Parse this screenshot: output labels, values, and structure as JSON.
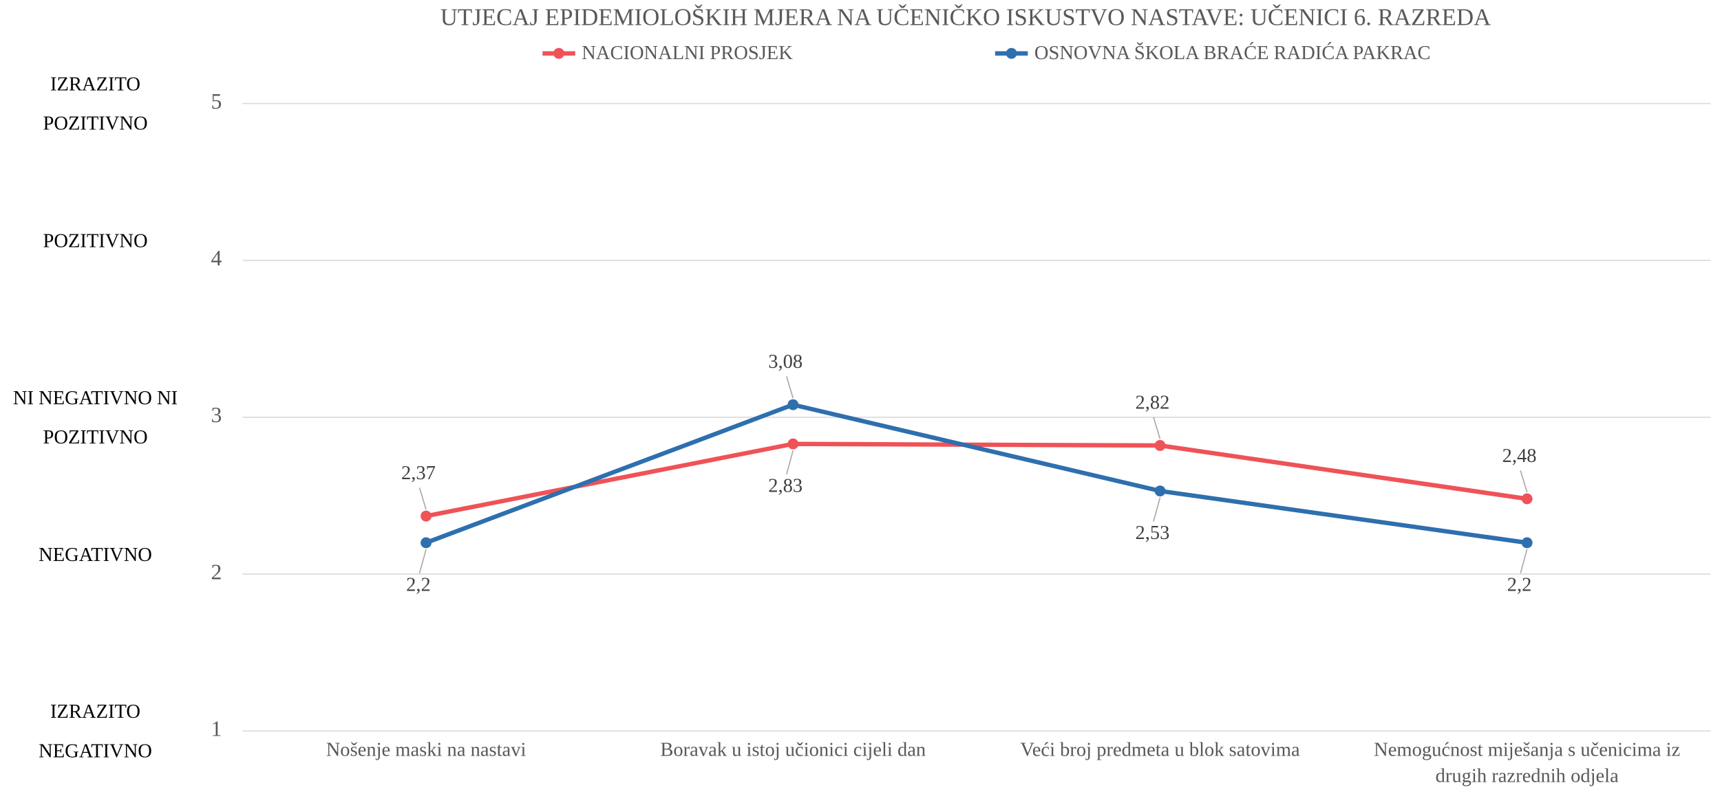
{
  "chart_data": {
    "type": "line",
    "title": "UTJECAJ EPIDEMIOLOŠKIH MJERA NA UČENIČKO ISKUSTVO NASTAVE: UČENICI 6. RAZREDA",
    "categories": [
      "Nošenje maski na nastavi",
      "Boravak u istoj učionici cijeli dan",
      "Veći broj predmeta u blok satovima",
      "Nemogućnost miješanja s učenicima iz drugih razrednih odjela"
    ],
    "series": [
      {
        "name": "NACIONALNI PROSJEK",
        "color": "#ef5257",
        "values": [
          2.37,
          2.83,
          2.82,
          2.48
        ],
        "value_labels": [
          "2,37",
          "2,83",
          "2,82",
          "2,48"
        ]
      },
      {
        "name": "OSNOVNA ŠKOLA BRAĆE RADIĆA PAKRAC",
        "color": "#2e6fae",
        "values": [
          2.2,
          3.08,
          2.53,
          2.2
        ],
        "value_labels": [
          "2,2",
          "3,08",
          "2,53",
          "2,2"
        ]
      }
    ],
    "ylim": [
      1,
      5
    ],
    "yticks": [
      1,
      2,
      3,
      4,
      5
    ],
    "y_level_labels": [
      "IZRAZITO NEGATIVNO",
      "NEGATIVNO",
      "NI NEGATIVNO NI POZITIVNO",
      "POZITIVNO",
      "IZRAZITO POZITIVNO"
    ],
    "grid": true
  }
}
